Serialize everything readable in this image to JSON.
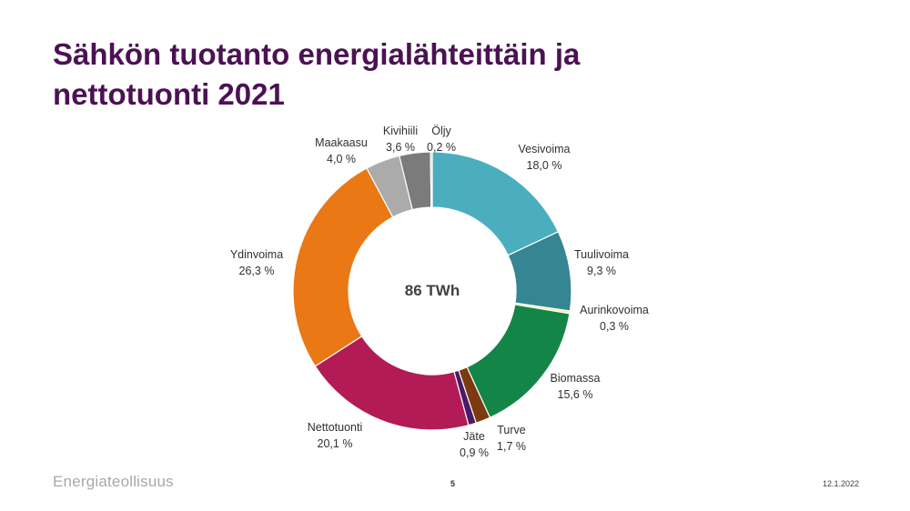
{
  "slide": {
    "title_line1": "Sähkön tuotanto energialähteittäin ja",
    "title_line2": "nettotuonti 2021",
    "footer_logo": "Energiateollisuus",
    "page_number": "5",
    "date": "12.1.2022"
  },
  "colors": {
    "title": "#4b1253",
    "slice_border": "#ffffff"
  },
  "chart_data": {
    "type": "pie",
    "variant": "donut",
    "center_label": "86 TWh",
    "unit": "%",
    "slices": [
      {
        "label": "Vesivoima",
        "value": 18.0,
        "value_label": "18,0 %",
        "color": "#4aaebf"
      },
      {
        "label": "Tuulivoima",
        "value": 9.3,
        "value_label": "9,3 %",
        "color": "#368593"
      },
      {
        "label": "Aurinkovoima",
        "value": 0.3,
        "value_label": "0,3 %",
        "color": "#f0ec8e"
      },
      {
        "label": "Biomassa",
        "value": 15.6,
        "value_label": "15,6 %",
        "color": "#138647"
      },
      {
        "label": "Turve",
        "value": 1.7,
        "value_label": "1,7 %",
        "color": "#7b3a10"
      },
      {
        "label": "Jäte",
        "value": 0.9,
        "value_label": "0,9 %",
        "color": "#4b1a66"
      },
      {
        "label": "Nettotuonti",
        "value": 20.1,
        "value_label": "20,1 %",
        "color": "#b31b56"
      },
      {
        "label": "Ydinvoima",
        "value": 26.3,
        "value_label": "26,3 %",
        "color": "#ea7815"
      },
      {
        "label": "Maakaasu",
        "value": 4.0,
        "value_label": "4,0 %",
        "color": "#ababab"
      },
      {
        "label": "Kivihiili",
        "value": 3.6,
        "value_label": "3,6 %",
        "color": "#7b7b7b"
      },
      {
        "label": "Öljy",
        "value": 0.2,
        "value_label": "0,2 %",
        "color": "#c8c8a0"
      }
    ]
  }
}
